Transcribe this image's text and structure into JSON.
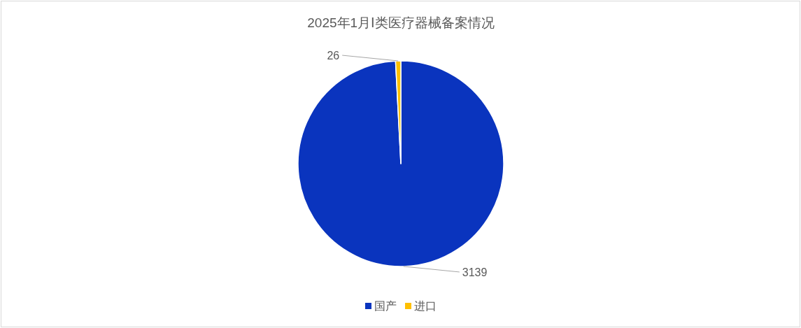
{
  "chart_data": {
    "type": "pie",
    "title": "2025年1月Ⅰ类医疗器械备案情况",
    "categories": [
      "国产",
      "进口"
    ],
    "values": [
      3139,
      26
    ],
    "colors": [
      "#0a34be",
      "#ffc000"
    ],
    "data_labels": true,
    "legend": "bottom"
  }
}
